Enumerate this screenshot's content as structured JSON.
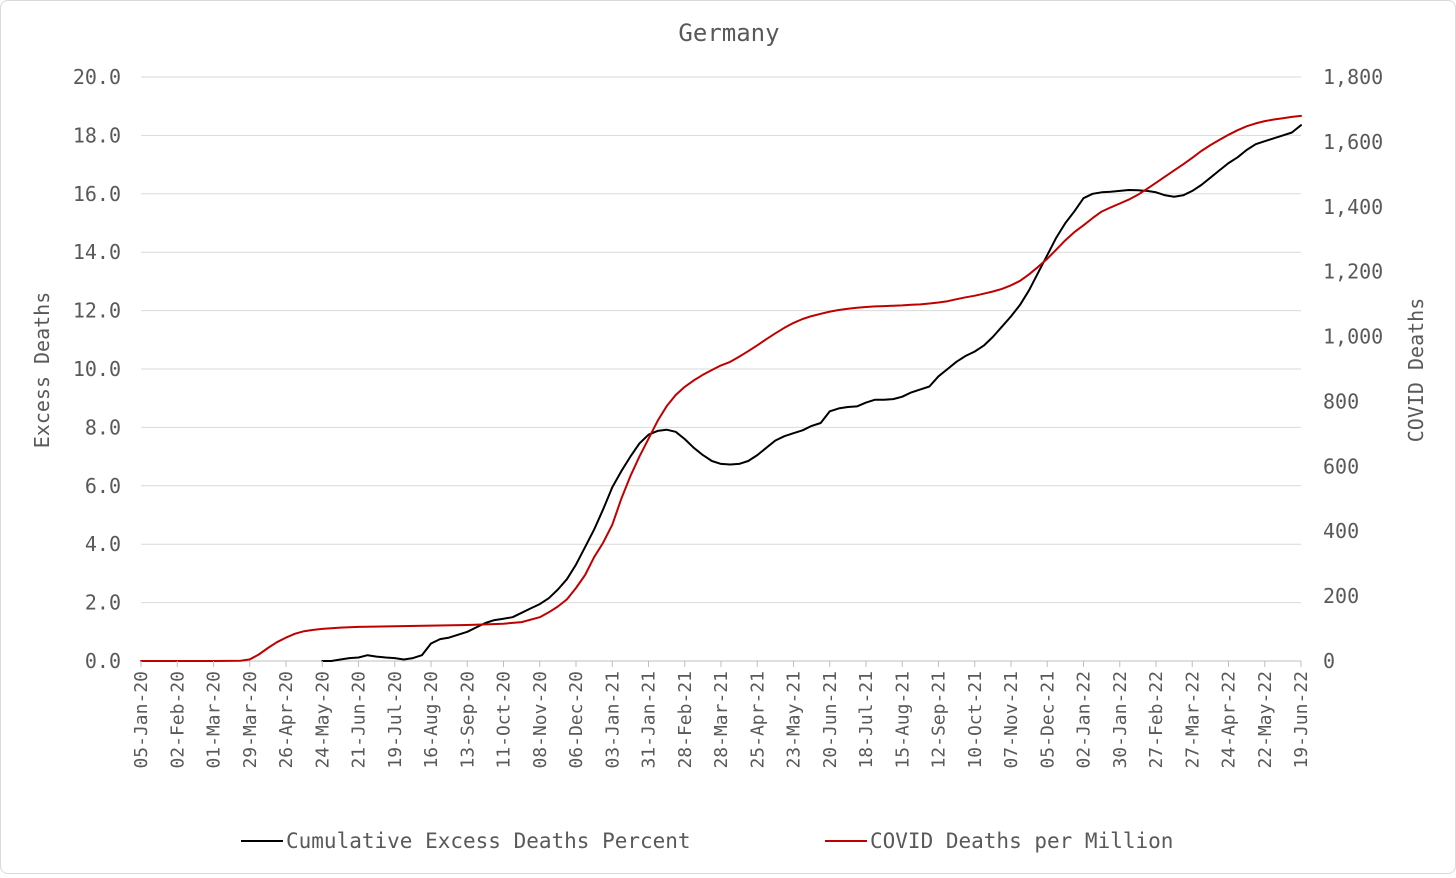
{
  "chart_data": {
    "type": "line",
    "title": "Germany",
    "ylabel": "Excess Deaths",
    "y2label": "COVID Deaths",
    "ylim": [
      0,
      20
    ],
    "y2lim": [
      0,
      1800
    ],
    "yticks": [
      "0.0",
      "2.0",
      "4.0",
      "6.0",
      "8.0",
      "10.0",
      "12.0",
      "14.0",
      "16.0",
      "18.0",
      "20.0"
    ],
    "y2ticks": [
      "0",
      "200",
      "400",
      "600",
      "800",
      "1,000",
      "1,200",
      "1,400",
      "1,600",
      "1,800"
    ],
    "grid": true,
    "legend_position": "bottom",
    "x_start": "05-Jan-20",
    "x_end": "19-Jun-22",
    "x_step": "week",
    "xticks": [
      "05-Jan-20",
      "02-Feb-20",
      "01-Mar-20",
      "29-Mar-20",
      "26-Apr-20",
      "24-May-20",
      "21-Jun-20",
      "19-Jul-20",
      "16-Aug-20",
      "13-Sep-20",
      "11-Oct-20",
      "08-Nov-20",
      "06-Dec-20",
      "03-Jan-21",
      "31-Jan-21",
      "28-Feb-21",
      "28-Mar-21",
      "25-Apr-21",
      "23-May-21",
      "20-Jun-21",
      "18-Jul-21",
      "15-Aug-21",
      "12-Sep-21",
      "10-Oct-21",
      "07-Nov-21",
      "05-Dec-21",
      "02-Jan-22",
      "30-Jan-22",
      "27-Feb-22",
      "27-Mar-22",
      "24-Apr-22",
      "22-May-22",
      "19-Jun-22"
    ],
    "series": [
      {
        "name": "Cumulative Excess Deaths Percent",
        "axis": "left",
        "color": "#000000",
        "points": [
          [
            "24-May-20",
            0.0
          ],
          [
            "31-May-20",
            0.0
          ],
          [
            "07-Jun-20",
            0.05
          ],
          [
            "14-Jun-20",
            0.1
          ],
          [
            "21-Jun-20",
            0.12
          ],
          [
            "28-Jun-20",
            0.2
          ],
          [
            "05-Jul-20",
            0.15
          ],
          [
            "12-Jul-20",
            0.12
          ],
          [
            "19-Jul-20",
            0.1
          ],
          [
            "26-Jul-20",
            0.05
          ],
          [
            "02-Aug-20",
            0.1
          ],
          [
            "09-Aug-20",
            0.2
          ],
          [
            "16-Aug-20",
            0.6
          ],
          [
            "23-Aug-20",
            0.75
          ],
          [
            "30-Aug-20",
            0.8
          ],
          [
            "06-Sep-20",
            0.9
          ],
          [
            "13-Sep-20",
            1.0
          ],
          [
            "20-Sep-20",
            1.15
          ],
          [
            "27-Sep-20",
            1.3
          ],
          [
            "04-Oct-20",
            1.4
          ],
          [
            "11-Oct-20",
            1.45
          ],
          [
            "18-Oct-20",
            1.5
          ],
          [
            "25-Oct-20",
            1.65
          ],
          [
            "01-Nov-20",
            1.8
          ],
          [
            "08-Nov-20",
            1.95
          ],
          [
            "15-Nov-20",
            2.15
          ],
          [
            "22-Nov-20",
            2.45
          ],
          [
            "29-Nov-20",
            2.8
          ],
          [
            "06-Dec-20",
            3.3
          ],
          [
            "13-Dec-20",
            3.9
          ],
          [
            "20-Dec-20",
            4.5
          ],
          [
            "27-Dec-20",
            5.2
          ],
          [
            "03-Jan-21",
            5.95
          ],
          [
            "10-Jan-21",
            6.5
          ],
          [
            "17-Jan-21",
            7.0
          ],
          [
            "24-Jan-21",
            7.45
          ],
          [
            "31-Jan-21",
            7.75
          ],
          [
            "07-Feb-21",
            7.88
          ],
          [
            "14-Feb-21",
            7.92
          ],
          [
            "21-Feb-21",
            7.85
          ],
          [
            "28-Feb-21",
            7.6
          ],
          [
            "07-Mar-21",
            7.3
          ],
          [
            "14-Mar-21",
            7.05
          ],
          [
            "21-Mar-21",
            6.85
          ],
          [
            "28-Mar-21",
            6.75
          ],
          [
            "04-Apr-21",
            6.73
          ],
          [
            "11-Apr-21",
            6.75
          ],
          [
            "18-Apr-21",
            6.85
          ],
          [
            "25-Apr-21",
            7.05
          ],
          [
            "02-May-21",
            7.3
          ],
          [
            "09-May-21",
            7.55
          ],
          [
            "16-May-21",
            7.7
          ],
          [
            "23-May-21",
            7.8
          ],
          [
            "30-May-21",
            7.9
          ],
          [
            "06-Jun-21",
            8.05
          ],
          [
            "13-Jun-21",
            8.15
          ],
          [
            "20-Jun-21",
            8.55
          ],
          [
            "27-Jun-21",
            8.65
          ],
          [
            "04-Jul-21",
            8.7
          ],
          [
            "11-Jul-21",
            8.72
          ],
          [
            "18-Jul-21",
            8.85
          ],
          [
            "25-Jul-21",
            8.95
          ],
          [
            "01-Aug-21",
            8.95
          ],
          [
            "08-Aug-21",
            8.97
          ],
          [
            "15-Aug-21",
            9.05
          ],
          [
            "22-Aug-21",
            9.2
          ],
          [
            "29-Aug-21",
            9.3
          ],
          [
            "05-Sep-21",
            9.4
          ],
          [
            "12-Sep-21",
            9.75
          ],
          [
            "19-Sep-21",
            10.0
          ],
          [
            "26-Sep-21",
            10.25
          ],
          [
            "03-Oct-21",
            10.45
          ],
          [
            "10-Oct-21",
            10.6
          ],
          [
            "17-Oct-21",
            10.8
          ],
          [
            "24-Oct-21",
            11.1
          ],
          [
            "31-Oct-21",
            11.45
          ],
          [
            "07-Nov-21",
            11.8
          ],
          [
            "14-Nov-21",
            12.2
          ],
          [
            "21-Nov-21",
            12.7
          ],
          [
            "28-Nov-21",
            13.3
          ],
          [
            "05-Dec-21",
            13.9
          ],
          [
            "12-Dec-21",
            14.5
          ],
          [
            "19-Dec-21",
            15.0
          ],
          [
            "26-Dec-21",
            15.4
          ],
          [
            "02-Jan-22",
            15.85
          ],
          [
            "09-Jan-22",
            16.0
          ],
          [
            "16-Jan-22",
            16.05
          ],
          [
            "23-Jan-22",
            16.07
          ],
          [
            "30-Jan-22",
            16.1
          ],
          [
            "06-Feb-22",
            16.13
          ],
          [
            "13-Feb-22",
            16.12
          ],
          [
            "20-Feb-22",
            16.1
          ],
          [
            "27-Feb-22",
            16.05
          ],
          [
            "06-Mar-22",
            15.95
          ],
          [
            "13-Mar-22",
            15.9
          ],
          [
            "20-Mar-22",
            15.95
          ],
          [
            "27-Mar-22",
            16.1
          ],
          [
            "03-Apr-22",
            16.3
          ],
          [
            "10-Apr-22",
            16.55
          ],
          [
            "17-Apr-22",
            16.8
          ],
          [
            "24-Apr-22",
            17.05
          ],
          [
            "01-May-22",
            17.25
          ],
          [
            "08-May-22",
            17.5
          ],
          [
            "15-May-22",
            17.7
          ],
          [
            "22-May-22",
            17.8
          ],
          [
            "29-May-22",
            17.9
          ],
          [
            "05-Jun-22",
            18.0
          ],
          [
            "12-Jun-22",
            18.1
          ],
          [
            "19-Jun-22",
            18.35
          ]
        ]
      },
      {
        "name": "COVID Deaths per Million",
        "axis": "right",
        "color": "#c00000",
        "points": [
          [
            "05-Jan-20",
            0
          ],
          [
            "01-Mar-20",
            0
          ],
          [
            "22-Mar-20",
            1
          ],
          [
            "29-Mar-20",
            5
          ],
          [
            "05-Apr-20",
            20
          ],
          [
            "12-Apr-20",
            40
          ],
          [
            "19-Apr-20",
            58
          ],
          [
            "26-Apr-20",
            72
          ],
          [
            "03-May-20",
            84
          ],
          [
            "10-May-20",
            92
          ],
          [
            "17-May-20",
            96
          ],
          [
            "24-May-20",
            99
          ],
          [
            "31-May-20",
            101
          ],
          [
            "07-Jun-20",
            103
          ],
          [
            "14-Jun-20",
            104
          ],
          [
            "21-Jun-20",
            105
          ],
          [
            "19-Jul-20",
            107
          ],
          [
            "16-Aug-20",
            109
          ],
          [
            "13-Sep-20",
            111
          ],
          [
            "11-Oct-20",
            115
          ],
          [
            "25-Oct-20",
            120
          ],
          [
            "08-Nov-20",
            135
          ],
          [
            "15-Nov-20",
            150
          ],
          [
            "22-Nov-20",
            168
          ],
          [
            "29-Nov-20",
            190
          ],
          [
            "06-Dec-20",
            225
          ],
          [
            "13-Dec-20",
            265
          ],
          [
            "20-Dec-20",
            320
          ],
          [
            "27-Dec-20",
            365
          ],
          [
            "03-Jan-21",
            420
          ],
          [
            "10-Jan-21",
            500
          ],
          [
            "17-Jan-21",
            570
          ],
          [
            "24-Jan-21",
            630
          ],
          [
            "31-Jan-21",
            685
          ],
          [
            "07-Feb-21",
            740
          ],
          [
            "14-Feb-21",
            785
          ],
          [
            "21-Feb-21",
            820
          ],
          [
            "28-Feb-21",
            845
          ],
          [
            "07-Mar-21",
            865
          ],
          [
            "14-Mar-21",
            882
          ],
          [
            "21-Mar-21",
            897
          ],
          [
            "28-Mar-21",
            911
          ],
          [
            "04-Apr-21",
            922
          ],
          [
            "11-Apr-21",
            938
          ],
          [
            "18-Apr-21",
            955
          ],
          [
            "25-Apr-21",
            973
          ],
          [
            "02-May-21",
            992
          ],
          [
            "09-May-21",
            1010
          ],
          [
            "16-May-21",
            1027
          ],
          [
            "23-May-21",
            1042
          ],
          [
            "30-May-21",
            1054
          ],
          [
            "06-Jun-21",
            1063
          ],
          [
            "13-Jun-21",
            1070
          ],
          [
            "20-Jun-21",
            1077
          ],
          [
            "27-Jun-21",
            1082
          ],
          [
            "04-Jul-21",
            1086
          ],
          [
            "11-Jul-21",
            1089
          ],
          [
            "18-Jul-21",
            1091
          ],
          [
            "25-Jul-21",
            1093
          ],
          [
            "01-Aug-21",
            1094
          ],
          [
            "08-Aug-21",
            1095
          ],
          [
            "15-Aug-21",
            1096
          ],
          [
            "22-Aug-21",
            1098
          ],
          [
            "29-Aug-21",
            1099
          ],
          [
            "05-Sep-21",
            1102
          ],
          [
            "12-Sep-21",
            1105
          ],
          [
            "19-Sep-21",
            1109
          ],
          [
            "26-Sep-21",
            1115
          ],
          [
            "03-Oct-21",
            1121
          ],
          [
            "10-Oct-21",
            1126
          ],
          [
            "17-Oct-21",
            1132
          ],
          [
            "24-Oct-21",
            1139
          ],
          [
            "31-Oct-21",
            1147
          ],
          [
            "07-Nov-21",
            1158
          ],
          [
            "14-Nov-21",
            1172
          ],
          [
            "21-Nov-21",
            1192
          ],
          [
            "28-Nov-21",
            1215
          ],
          [
            "05-Dec-21",
            1240
          ],
          [
            "12-Dec-21",
            1268
          ],
          [
            "19-Dec-21",
            1297
          ],
          [
            "26-Dec-21",
            1322
          ],
          [
            "02-Jan-22",
            1343
          ],
          [
            "09-Jan-22",
            1365
          ],
          [
            "16-Jan-22",
            1385
          ],
          [
            "23-Jan-22",
            1398
          ],
          [
            "30-Jan-22",
            1410
          ],
          [
            "06-Feb-22",
            1422
          ],
          [
            "13-Feb-22",
            1437
          ],
          [
            "20-Feb-22",
            1455
          ],
          [
            "27-Feb-22",
            1474
          ],
          [
            "06-Mar-22",
            1493
          ],
          [
            "13-Mar-22",
            1512
          ],
          [
            "20-Mar-22",
            1531
          ],
          [
            "27-Mar-22",
            1551
          ],
          [
            "03-Apr-22",
            1572
          ],
          [
            "10-Apr-22",
            1590
          ],
          [
            "17-Apr-22",
            1606
          ],
          [
            "24-Apr-22",
            1622
          ],
          [
            "01-May-22",
            1636
          ],
          [
            "08-May-22",
            1648
          ],
          [
            "15-May-22",
            1657
          ],
          [
            "22-May-22",
            1664
          ],
          [
            "29-May-22",
            1669
          ],
          [
            "05-Jun-22",
            1673
          ],
          [
            "12-Jun-22",
            1677
          ],
          [
            "19-Jun-22",
            1680
          ]
        ]
      }
    ]
  }
}
